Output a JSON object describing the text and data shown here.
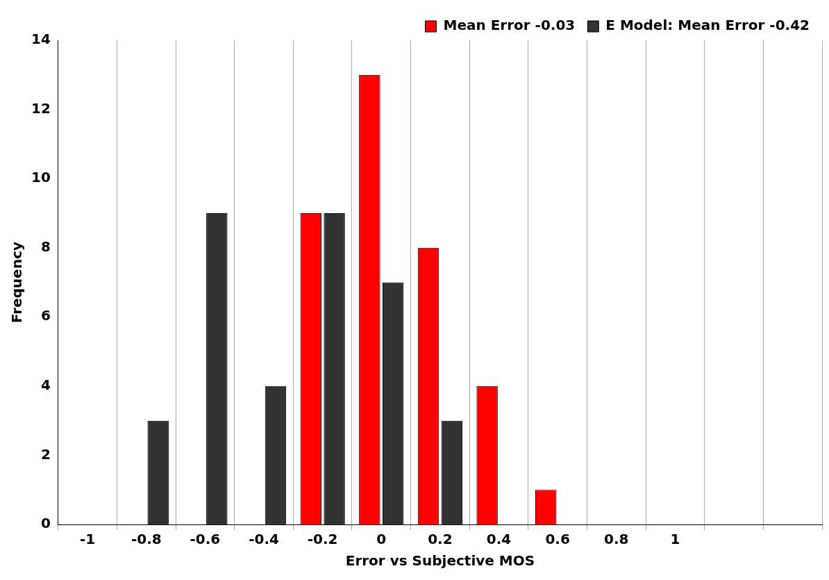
{
  "chart_data": {
    "type": "bar",
    "xlabel": "Error vs Subjective MOS",
    "ylabel": "Frequency",
    "categories": [
      "-1",
      "-0.8",
      "-0.6",
      "-0.4",
      "-0.2",
      "0",
      "0.2",
      "0.4",
      "0.6",
      "0.8",
      "1",
      null,
      null
    ],
    "series": [
      {
        "name": "Mean Error -0.03",
        "color": "#ff0000",
        "values": [
          0,
          0,
          0,
          0,
          9,
          13,
          8,
          4,
          1,
          0,
          0,
          null,
          null
        ]
      },
      {
        "name": "E Model: Mean Error -0.42",
        "color": "#333333",
        "values": [
          0,
          3,
          9,
          4,
          9,
          7,
          3,
          0,
          0,
          0,
          0,
          null,
          null
        ]
      }
    ],
    "ylim": [
      0,
      14
    ],
    "yticks": [
      0,
      2,
      4,
      6,
      8,
      10,
      12,
      14
    ],
    "grid": "x",
    "legend": "top right"
  }
}
